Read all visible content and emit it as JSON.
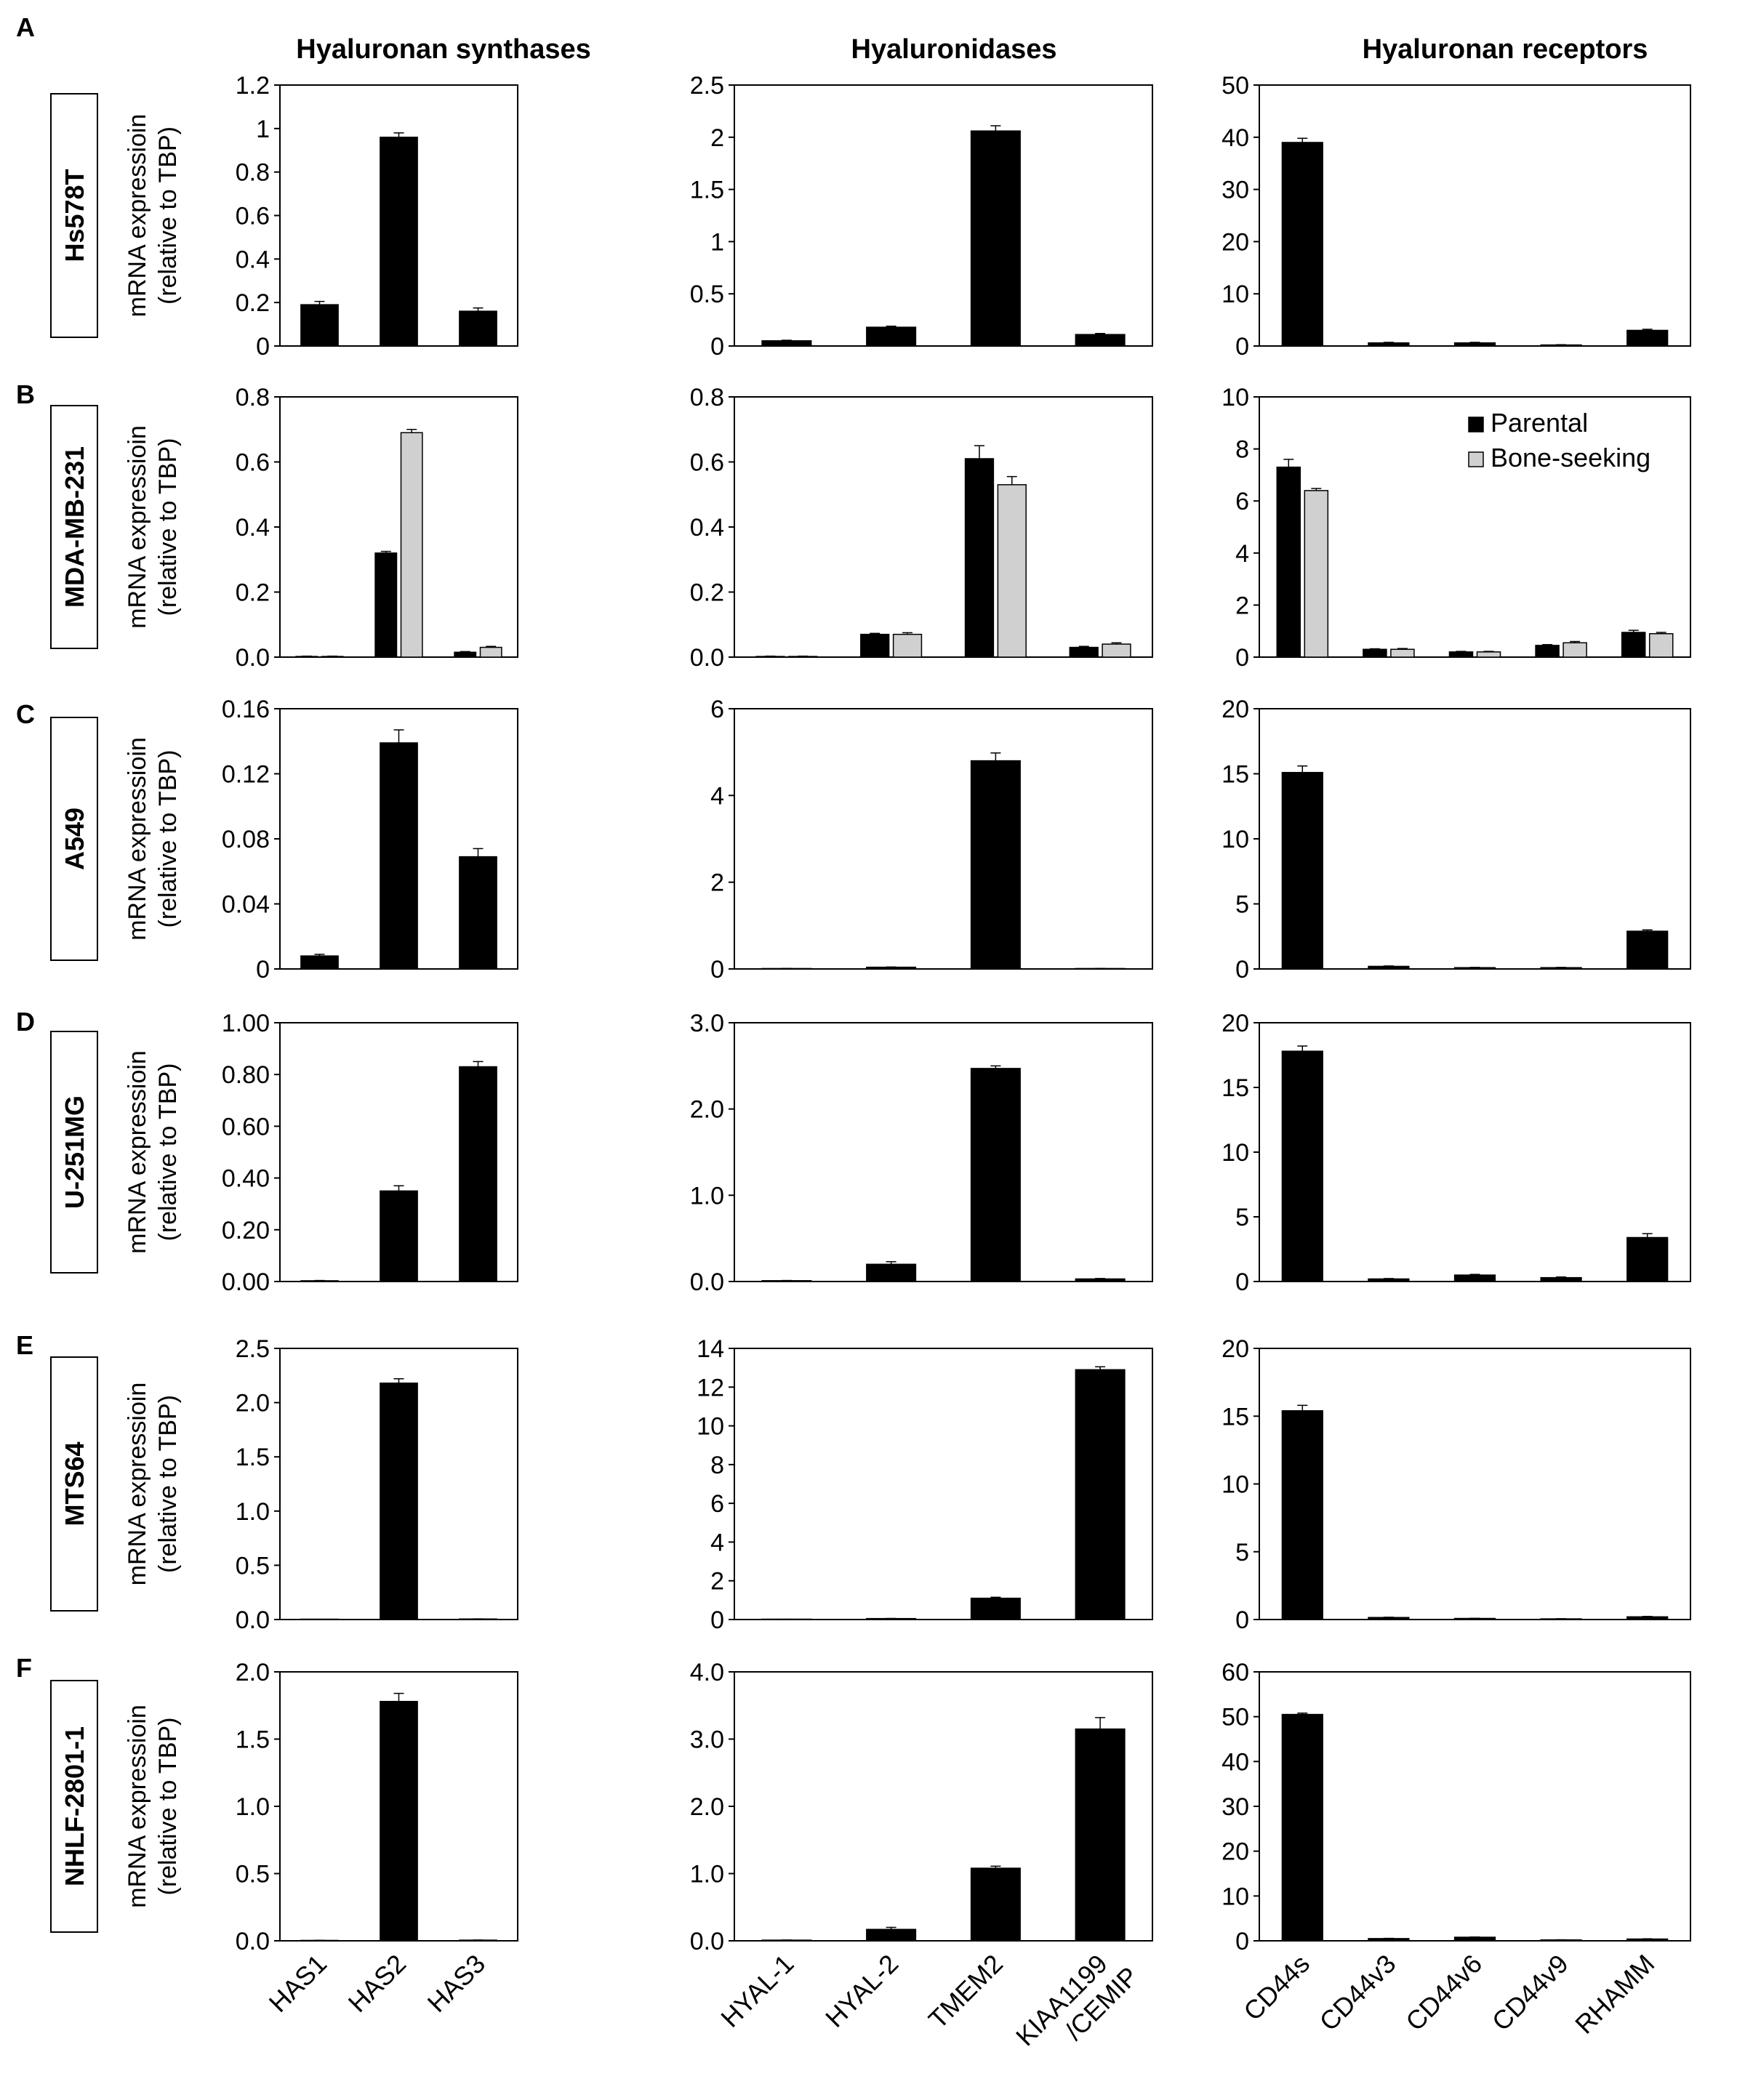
{
  "figure": {
    "column_titles": [
      "Hyaluronan synthases",
      "Hyaluronidases",
      "Hyaluronan receptors"
    ],
    "ylabel_line1": "mRNA expressioin",
    "ylabel_line2": "(relative to TBP)",
    "legend": {
      "parental": "Parental",
      "bone_seeking": "Bone-seeking"
    },
    "categories": [
      [
        "HAS1",
        "HAS2",
        "HAS3"
      ],
      [
        "HYAL-1",
        "HYAL-2",
        "TMEM2",
        "KIAA1199\n/CEMIP"
      ],
      [
        "CD44s",
        "CD44v3",
        "CD44v6",
        "CD44v9",
        "RHAMM"
      ]
    ],
    "colors": {
      "parental": "#000000",
      "bone_seeking": "#d0d0d0"
    }
  },
  "chart_data": [
    {
      "type": "bar",
      "panel": "A",
      "row_label": "Hs578T",
      "title": "Hyaluronan synthases",
      "categories": [
        "HAS1",
        "HAS2",
        "HAS3"
      ],
      "ylim": [
        0,
        1.2
      ],
      "yticks": [
        0,
        0.2,
        0.4,
        0.6,
        0.8,
        1,
        1.2
      ],
      "tick_decimals": null,
      "series": [
        {
          "name": "Parental",
          "values": [
            0.19,
            0.96,
            0.16
          ],
          "errors": [
            0.015,
            0.02,
            0.015
          ]
        }
      ]
    },
    {
      "type": "bar",
      "panel": "A",
      "row_label": "Hs578T",
      "title": "Hyaluronidases",
      "categories": [
        "HYAL-1",
        "HYAL-2",
        "TMEM2",
        "KIAA1199 /CEMIP"
      ],
      "ylim": [
        0,
        2.5
      ],
      "yticks": [
        0,
        0.5,
        1,
        1.5,
        2,
        2.5
      ],
      "tick_decimals": null,
      "series": [
        {
          "name": "Parental",
          "values": [
            0.05,
            0.18,
            2.06,
            0.11
          ],
          "errors": [
            0.005,
            0.01,
            0.05,
            0.01
          ]
        }
      ]
    },
    {
      "type": "bar",
      "panel": "A",
      "row_label": "Hs578T",
      "title": "Hyaluronan receptors",
      "categories": [
        "CD44s",
        "CD44v3",
        "CD44v6",
        "CD44v9",
        "RHAMM"
      ],
      "ylim": [
        0,
        50
      ],
      "yticks": [
        0,
        10,
        20,
        30,
        40,
        50
      ],
      "tick_decimals": null,
      "series": [
        {
          "name": "Parental",
          "values": [
            39,
            0.6,
            0.6,
            0.2,
            3
          ],
          "errors": [
            0.8,
            0.1,
            0.1,
            0.05,
            0.2
          ]
        }
      ]
    },
    {
      "type": "bar",
      "panel": "B",
      "row_label": "MDA-MB-231",
      "title": "Hyaluronan synthases",
      "categories": [
        "HAS1",
        "HAS2",
        "HAS3"
      ],
      "ylim": [
        0,
        0.8
      ],
      "yticks": [
        0,
        0.2,
        0.4,
        0.6,
        0.8
      ],
      "tick_decimals": 1,
      "series": [
        {
          "name": "Parental",
          "values": [
            0.002,
            0.32,
            0.015
          ],
          "errors": [
            0.001,
            0.005,
            0.002
          ]
        },
        {
          "name": "Bone-seeking",
          "values": [
            0.002,
            0.69,
            0.03
          ],
          "errors": [
            0.001,
            0.01,
            0.003
          ]
        }
      ]
    },
    {
      "type": "bar",
      "panel": "B",
      "row_label": "MDA-MB-231",
      "title": "Hyaluronidases",
      "categories": [
        "HYAL-1",
        "HYAL-2",
        "TMEM2",
        "KIAA1199 /CEMIP"
      ],
      "ylim": [
        0,
        0.8
      ],
      "yticks": [
        0,
        0.2,
        0.4,
        0.6,
        0.8
      ],
      "tick_decimals": 1,
      "series": [
        {
          "name": "Parental",
          "values": [
            0.002,
            0.07,
            0.61,
            0.03
          ],
          "errors": [
            0.001,
            0.003,
            0.04,
            0.003
          ]
        },
        {
          "name": "Bone-seeking",
          "values": [
            0.002,
            0.07,
            0.53,
            0.04
          ],
          "errors": [
            0.001,
            0.005,
            0.025,
            0.004
          ]
        }
      ]
    },
    {
      "type": "bar",
      "panel": "B",
      "row_label": "MDA-MB-231",
      "title": "Hyaluronan receptors",
      "legend": "top-right",
      "categories": [
        "CD44s",
        "CD44v3",
        "CD44v6",
        "CD44v9",
        "RHAMM"
      ],
      "ylim": [
        0,
        10
      ],
      "yticks": [
        0,
        2,
        4,
        6,
        8,
        10
      ],
      "tick_decimals": null,
      "series": [
        {
          "name": "Parental",
          "values": [
            7.3,
            0.3,
            0.2,
            0.45,
            0.95
          ],
          "errors": [
            0.3,
            0.02,
            0.02,
            0.03,
            0.08
          ]
        },
        {
          "name": "Bone-seeking",
          "values": [
            6.4,
            0.3,
            0.2,
            0.55,
            0.9
          ],
          "errors": [
            0.08,
            0.03,
            0.02,
            0.05,
            0.05
          ]
        }
      ]
    },
    {
      "type": "bar",
      "panel": "C",
      "row_label": "A549",
      "title": "Hyaluronan synthases",
      "categories": [
        "HAS1",
        "HAS2",
        "HAS3"
      ],
      "ylim": [
        0,
        0.16
      ],
      "yticks": [
        0,
        0.04,
        0.08,
        0.12,
        0.16
      ],
      "tick_decimals": null,
      "series": [
        {
          "name": "Parental",
          "values": [
            0.008,
            0.139,
            0.069
          ],
          "errors": [
            0.001,
            0.008,
            0.005
          ]
        }
      ]
    },
    {
      "type": "bar",
      "panel": "C",
      "row_label": "A549",
      "title": "Hyaluronidases",
      "categories": [
        "HYAL-1",
        "HYAL-2",
        "TMEM2",
        "KIAA1199 /CEMIP"
      ],
      "ylim": [
        0,
        6
      ],
      "yticks": [
        0,
        2,
        4,
        6
      ],
      "tick_decimals": null,
      "series": [
        {
          "name": "Parental",
          "values": [
            0.01,
            0.04,
            4.8,
            0.01
          ],
          "errors": [
            0.002,
            0.005,
            0.18,
            0.002
          ]
        }
      ]
    },
    {
      "type": "bar",
      "panel": "C",
      "row_label": "A549",
      "title": "Hyaluronan receptors",
      "categories": [
        "CD44s",
        "CD44v3",
        "CD44v6",
        "CD44v9",
        "RHAMM"
      ],
      "ylim": [
        0,
        20
      ],
      "yticks": [
        0,
        5,
        10,
        15,
        20
      ],
      "tick_decimals": null,
      "series": [
        {
          "name": "Parental",
          "values": [
            15.1,
            0.2,
            0.1,
            0.1,
            2.9
          ],
          "errors": [
            0.5,
            0.03,
            0.02,
            0.02,
            0.1
          ]
        }
      ]
    },
    {
      "type": "bar",
      "panel": "D",
      "row_label": "U-251MG",
      "title": "Hyaluronan synthases",
      "categories": [
        "HAS1",
        "HAS2",
        "HAS3"
      ],
      "ylim": [
        0,
        1.0
      ],
      "yticks": [
        0,
        0.2,
        0.4,
        0.6,
        0.8,
        1.0
      ],
      "tick_decimals": 2,
      "series": [
        {
          "name": "Parental",
          "values": [
            0.003,
            0.35,
            0.83
          ],
          "errors": [
            0.001,
            0.02,
            0.02
          ]
        }
      ]
    },
    {
      "type": "bar",
      "panel": "D",
      "row_label": "U-251MG",
      "title": "Hyaluronidases",
      "categories": [
        "HYAL-1",
        "HYAL-2",
        "TMEM2",
        "KIAA1199 /CEMIP"
      ],
      "ylim": [
        0,
        3.0
      ],
      "yticks": [
        0,
        1,
        2,
        3
      ],
      "tick_decimals": 1,
      "series": [
        {
          "name": "Parental",
          "values": [
            0.01,
            0.2,
            2.47,
            0.03
          ],
          "errors": [
            0.002,
            0.03,
            0.03,
            0.005
          ]
        }
      ]
    },
    {
      "type": "bar",
      "panel": "D",
      "row_label": "U-251MG",
      "title": "Hyaluronan receptors",
      "categories": [
        "CD44s",
        "CD44v3",
        "CD44v6",
        "CD44v9",
        "RHAMM"
      ],
      "ylim": [
        0,
        20
      ],
      "yticks": [
        0,
        5,
        10,
        15,
        20
      ],
      "tick_decimals": null,
      "series": [
        {
          "name": "Parental",
          "values": [
            17.8,
            0.2,
            0.5,
            0.3,
            3.4
          ],
          "errors": [
            0.4,
            0.03,
            0.05,
            0.05,
            0.3
          ]
        }
      ]
    },
    {
      "type": "bar",
      "panel": "E",
      "row_label": "MTS64",
      "title": "Hyaluronan synthases",
      "categories": [
        "HAS1",
        "HAS2",
        "HAS3"
      ],
      "ylim": [
        0,
        2.5
      ],
      "yticks": [
        0,
        0.5,
        1,
        1.5,
        2,
        2.5
      ],
      "tick_decimals": 1,
      "series": [
        {
          "name": "Parental",
          "values": [
            0.001,
            2.18,
            0.005
          ],
          "errors": [
            0.0005,
            0.04,
            0.001
          ]
        }
      ]
    },
    {
      "type": "bar",
      "panel": "E",
      "row_label": "MTS64",
      "title": "Hyaluronidases",
      "categories": [
        "HYAL-1",
        "HYAL-2",
        "TMEM2",
        "KIAA1199 /CEMIP"
      ],
      "ylim": [
        0,
        14
      ],
      "yticks": [
        0,
        2,
        4,
        6,
        8,
        10,
        12,
        14
      ],
      "tick_decimals": null,
      "series": [
        {
          "name": "Parental",
          "values": [
            0.01,
            0.05,
            1.1,
            12.9
          ],
          "errors": [
            0.002,
            0.005,
            0.05,
            0.15
          ]
        }
      ]
    },
    {
      "type": "bar",
      "panel": "E",
      "row_label": "MTS64",
      "title": "Hyaluronan receptors",
      "categories": [
        "CD44s",
        "CD44v3",
        "CD44v6",
        "CD44v9",
        "RHAMM"
      ],
      "ylim": [
        0,
        20
      ],
      "yticks": [
        0,
        5,
        10,
        15,
        20
      ],
      "tick_decimals": null,
      "series": [
        {
          "name": "Parental",
          "values": [
            15.4,
            0.15,
            0.08,
            0.05,
            0.2
          ],
          "errors": [
            0.4,
            0.02,
            0.01,
            0.01,
            0.03
          ]
        }
      ]
    },
    {
      "type": "bar",
      "panel": "F",
      "row_label": "NHLF-2801-1",
      "title": "Hyaluronan synthases",
      "categories": [
        "HAS1",
        "HAS2",
        "HAS3"
      ],
      "ylim": [
        0,
        2.0
      ],
      "yticks": [
        0,
        0.5,
        1,
        1.5,
        2
      ],
      "tick_decimals": 1,
      "series": [
        {
          "name": "Parental",
          "values": [
            0.003,
            1.78,
            0.005
          ],
          "errors": [
            0.001,
            0.06,
            0.001
          ]
        }
      ]
    },
    {
      "type": "bar",
      "panel": "F",
      "row_label": "NHLF-2801-1",
      "title": "Hyaluronidases",
      "categories": [
        "HYAL-1",
        "HYAL-2",
        "TMEM2",
        "KIAA1199 /CEMIP"
      ],
      "ylim": [
        0,
        4.0
      ],
      "yticks": [
        0,
        1,
        2,
        3,
        4
      ],
      "tick_decimals": 1,
      "series": [
        {
          "name": "Parental",
          "values": [
            0.01,
            0.17,
            1.08,
            3.15
          ],
          "errors": [
            0.002,
            0.03,
            0.03,
            0.17
          ]
        }
      ]
    },
    {
      "type": "bar",
      "panel": "F",
      "row_label": "NHLF-2801-1",
      "title": "Hyaluronan receptors",
      "categories": [
        "CD44s",
        "CD44v3",
        "CD44v6",
        "CD44v9",
        "RHAMM"
      ],
      "ylim": [
        0,
        60
      ],
      "yticks": [
        0,
        10,
        20,
        30,
        40,
        50,
        60
      ],
      "tick_decimals": null,
      "series": [
        {
          "name": "Parental",
          "values": [
            50.5,
            0.5,
            0.8,
            0.2,
            0.4
          ],
          "errors": [
            0.3,
            0.05,
            0.05,
            0.03,
            0.05
          ]
        }
      ]
    }
  ]
}
